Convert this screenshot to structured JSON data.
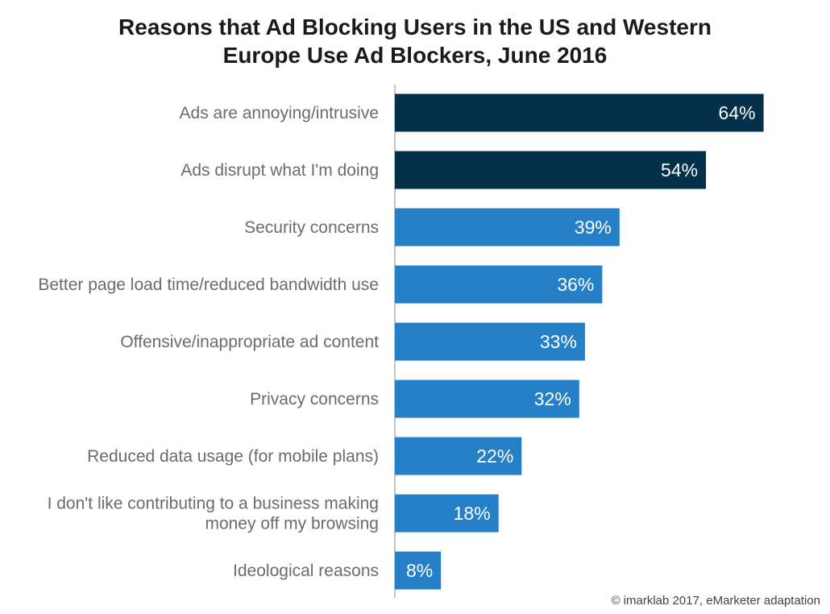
{
  "chart_data": {
    "type": "bar",
    "orientation": "horizontal",
    "title_lines": [
      "Reasons that Ad Blocking Users in the US and Western",
      "Europe Use Ad Blockers, June 2016"
    ],
    "categories": [
      [
        "Ads are annoying/intrusive"
      ],
      [
        "Ads disrupt what I'm doing"
      ],
      [
        "Security concerns"
      ],
      [
        "Better page load time/reduced bandwidth use"
      ],
      [
        "Offensive/inappropriate ad content"
      ],
      [
        "Privacy concerns"
      ],
      [
        "Reduced data usage (for mobile plans)"
      ],
      [
        "I don't like contributing to a business making",
        "money off my browsing"
      ],
      [
        "Ideological reasons"
      ]
    ],
    "values": [
      64,
      54,
      39,
      36,
      33,
      32,
      22,
      18,
      8
    ],
    "value_labels": [
      "64%",
      "54%",
      "39%",
      "36%",
      "33%",
      "32%",
      "22%",
      "18%",
      "8%"
    ],
    "unit": "%",
    "xlim": [
      0,
      75
    ],
    "bar_colors": [
      "#05304a",
      "#05304a",
      "#2680c7",
      "#2680c7",
      "#2680c7",
      "#2680c7",
      "#2680c7",
      "#2680c7",
      "#2680c7"
    ],
    "grid": false,
    "legend": "none"
  },
  "source_note": "© imarklab 2017, eMarketer adaptation"
}
